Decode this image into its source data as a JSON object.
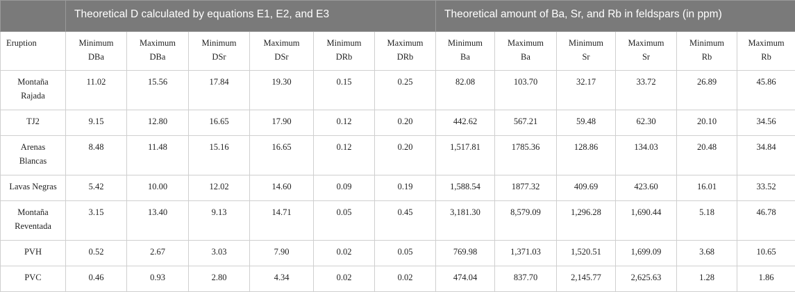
{
  "header": {
    "group_left": "Theoretical D calculated by equations E1, E2, and E3",
    "group_right": "Theoretical amount of Ba, Sr, and Rb in feldspars (in ppm)"
  },
  "columns": [
    "Eruption",
    "Minimum\nDBa",
    "Maximum\nDBa",
    "Minimum\nDSr",
    "Maximum\nDSr",
    "Minimum\nDRb",
    "Maximum\nDRb",
    "Minimum\nBa",
    "Maximum\nBa",
    "Minimum\nSr",
    "Maximum\nSr",
    "Minimum\nRb",
    "Maximum\nRb"
  ],
  "rows": [
    [
      "Montaña\nRajada",
      "11.02",
      "15.56",
      "17.84",
      "19.30",
      "0.15",
      "0.25",
      "82.08",
      "103.70",
      "32.17",
      "33.72",
      "26.89",
      "45.86"
    ],
    [
      "TJ2",
      "9.15",
      "12.80",
      "16.65",
      "17.90",
      "0.12",
      "0.20",
      "442.62",
      "567.21",
      "59.48",
      "62.30",
      "20.10",
      "34.56"
    ],
    [
      "Arenas\nBlancas",
      "8.48",
      "11.48",
      "15.16",
      "16.65",
      "0.12",
      "0.20",
      "1,517.81",
      "1785.36",
      "128.86",
      "134.03",
      "20.48",
      "34.84"
    ],
    [
      "Lavas Negras",
      "5.42",
      "10.00",
      "12.02",
      "14.60",
      "0.09",
      "0.19",
      "1,588.54",
      "1877.32",
      "409.69",
      "423.60",
      "16.01",
      "33.52"
    ],
    [
      "Montaña\nReventada",
      "3.15",
      "13.40",
      "9.13",
      "14.71",
      "0.05",
      "0.45",
      "3,181.30",
      "8,579.09",
      "1,296.28",
      "1,690.44",
      "5.18",
      "46.78"
    ],
    [
      "PVH",
      "0.52",
      "2.67",
      "3.03",
      "7.90",
      "0.02",
      "0.05",
      "769.98",
      "1,371.03",
      "1,520.51",
      "1,699.09",
      "3.68",
      "10.65"
    ],
    [
      "PVC",
      "0.46",
      "0.93",
      "2.80",
      "4.34",
      "0.02",
      "0.02",
      "474.04",
      "837.70",
      "2,145.77",
      "2,625.63",
      "1.28",
      "1.86"
    ]
  ]
}
